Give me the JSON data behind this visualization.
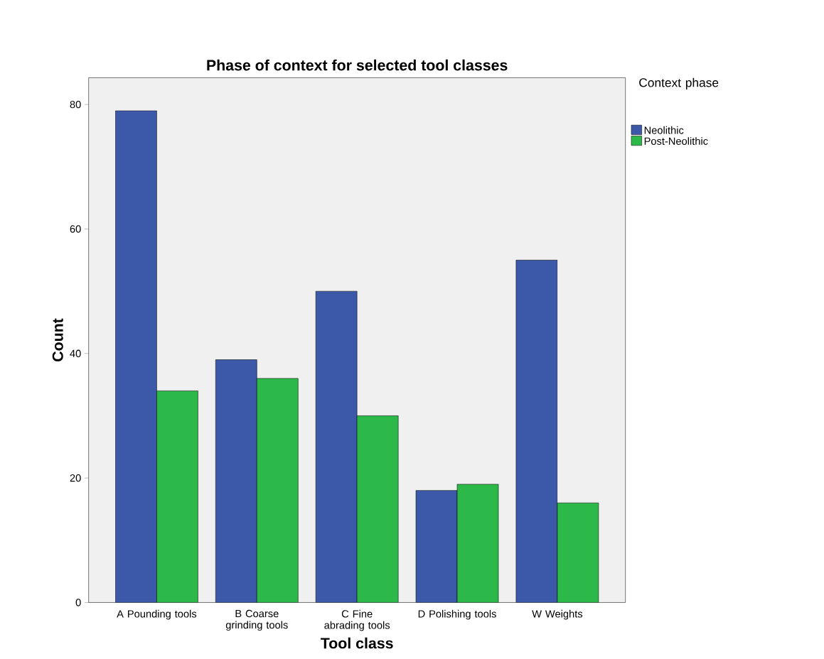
{
  "chart_data": {
    "type": "bar",
    "title": "Phase of context for selected tool classes",
    "xlabel": "Tool class",
    "ylabel": "Count",
    "legend_title": "Context phase",
    "categories": [
      "A Pounding tools",
      "B Coarse grinding tools",
      "C Fine abrading tools",
      "D Polishing tools",
      "W Weights"
    ],
    "series": [
      {
        "name": "Neolithic",
        "color": "#3c58a8",
        "values": [
          79,
          39,
          50,
          18,
          55
        ]
      },
      {
        "name": "Post-Neolithic",
        "color": "#2db84a",
        "values": [
          34,
          36,
          30,
          19,
          16
        ]
      }
    ],
    "ylim": [
      0,
      84.3
    ],
    "yticks": [
      0,
      20,
      40,
      60,
      80
    ],
    "grid": false,
    "legend": "top right"
  }
}
